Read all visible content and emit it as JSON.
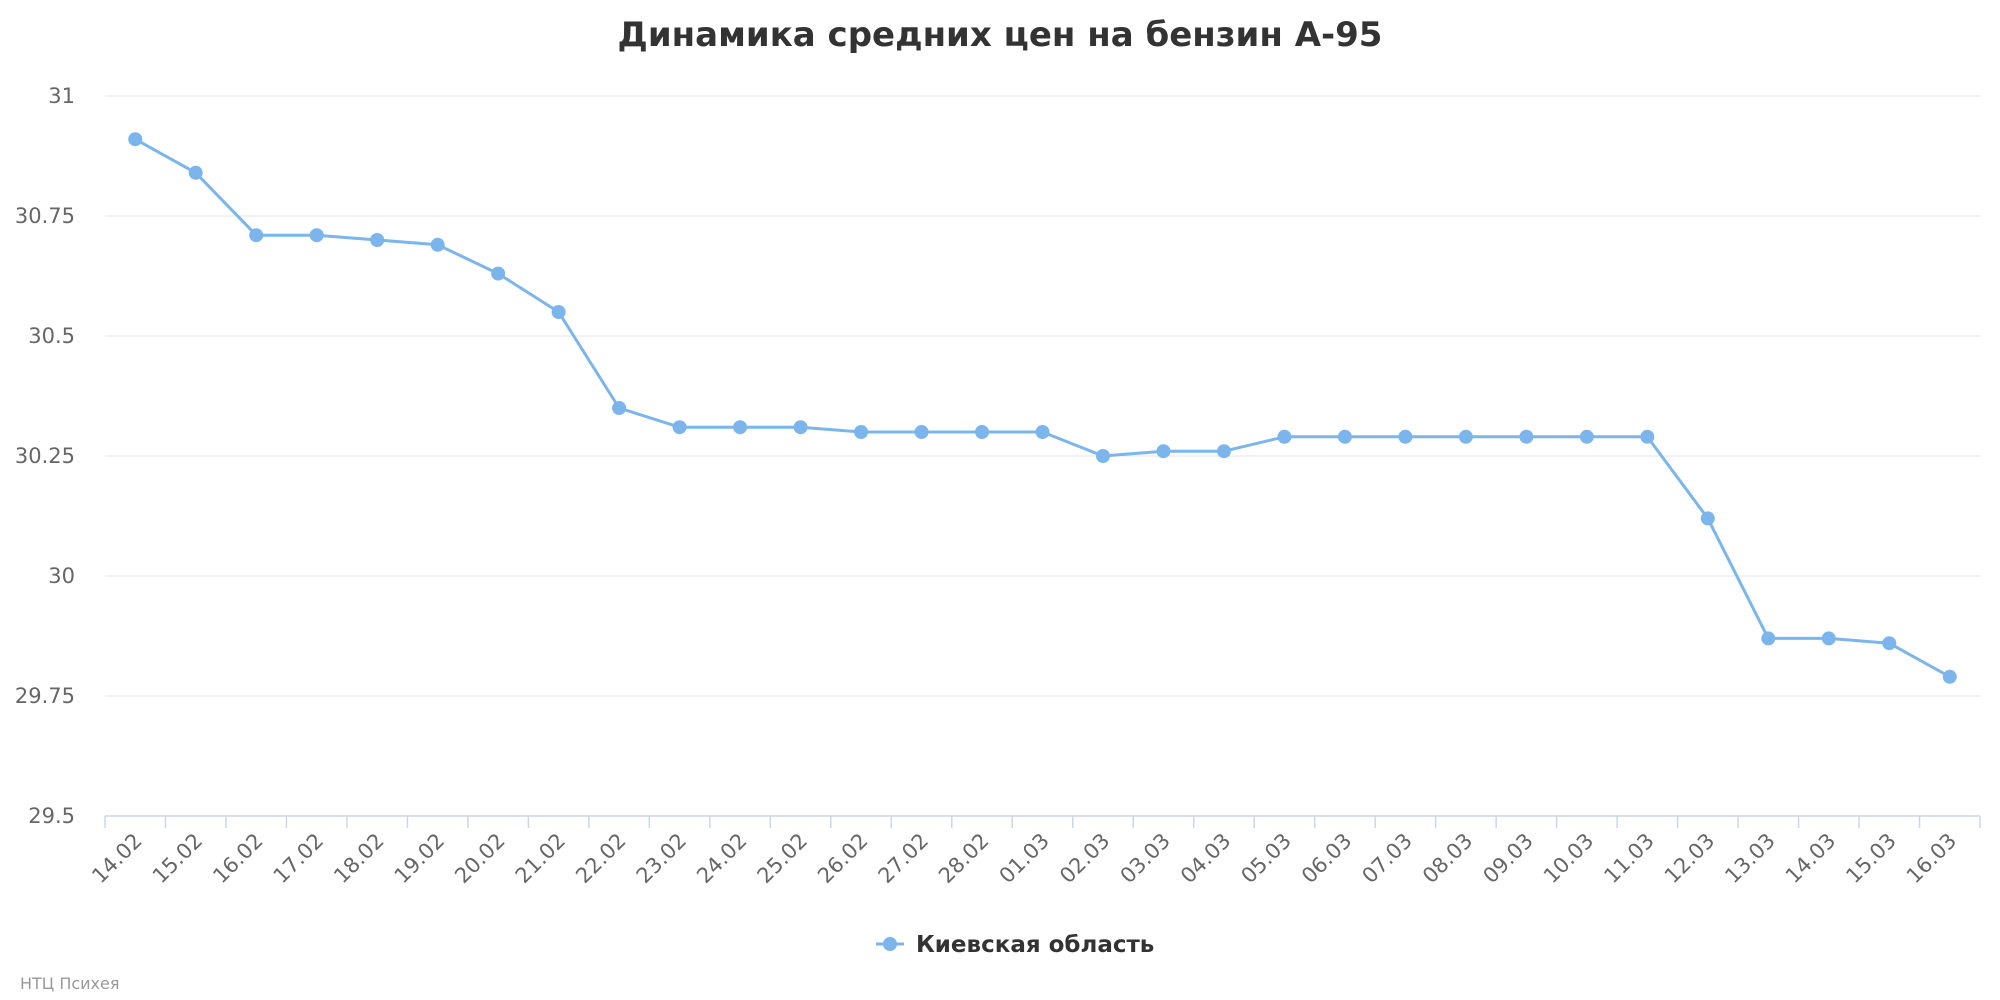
{
  "chart_data": {
    "type": "line",
    "title": "Динамика средних цен на бензин А-95",
    "xlabel": "",
    "ylabel": "",
    "categories": [
      "14.02",
      "15.02",
      "16.02",
      "17.02",
      "18.02",
      "19.02",
      "20.02",
      "21.02",
      "22.02",
      "23.02",
      "24.02",
      "25.02",
      "26.02",
      "27.02",
      "28.02",
      "01.03",
      "02.03",
      "03.03",
      "04.03",
      "05.03",
      "06.03",
      "07.03",
      "08.03",
      "09.03",
      "10.03",
      "11.03",
      "12.03",
      "13.03",
      "14.03",
      "15.03",
      "16.03"
    ],
    "series": [
      {
        "name": "Киевская область",
        "color": "#7cb5ec",
        "values": [
          30.91,
          30.84,
          30.71,
          30.71,
          30.7,
          30.69,
          30.63,
          30.55,
          30.35,
          30.31,
          30.31,
          30.31,
          30.3,
          30.3,
          30.3,
          30.3,
          30.25,
          30.26,
          30.26,
          30.29,
          30.29,
          30.29,
          30.29,
          30.29,
          30.29,
          30.29,
          30.12,
          29.87,
          29.87,
          29.86,
          29.79
        ]
      }
    ],
    "ylim": [
      29.5,
      31
    ],
    "yticks": [
      {
        "value": 31,
        "label": "31"
      },
      {
        "value": 30.75,
        "label": "30.75"
      },
      {
        "value": 30.5,
        "label": "30.5"
      },
      {
        "value": 30.25,
        "label": "30.25"
      },
      {
        "value": 30,
        "label": "30"
      },
      {
        "value": 29.75,
        "label": "29.75"
      },
      {
        "value": 29.5,
        "label": "29.5"
      }
    ],
    "grid": true,
    "legend_position": "bottom-center"
  },
  "credit": "НТЦ Психея",
  "colors": {
    "grid": "#e6e6e6",
    "axis": "#ccd6eb"
  }
}
